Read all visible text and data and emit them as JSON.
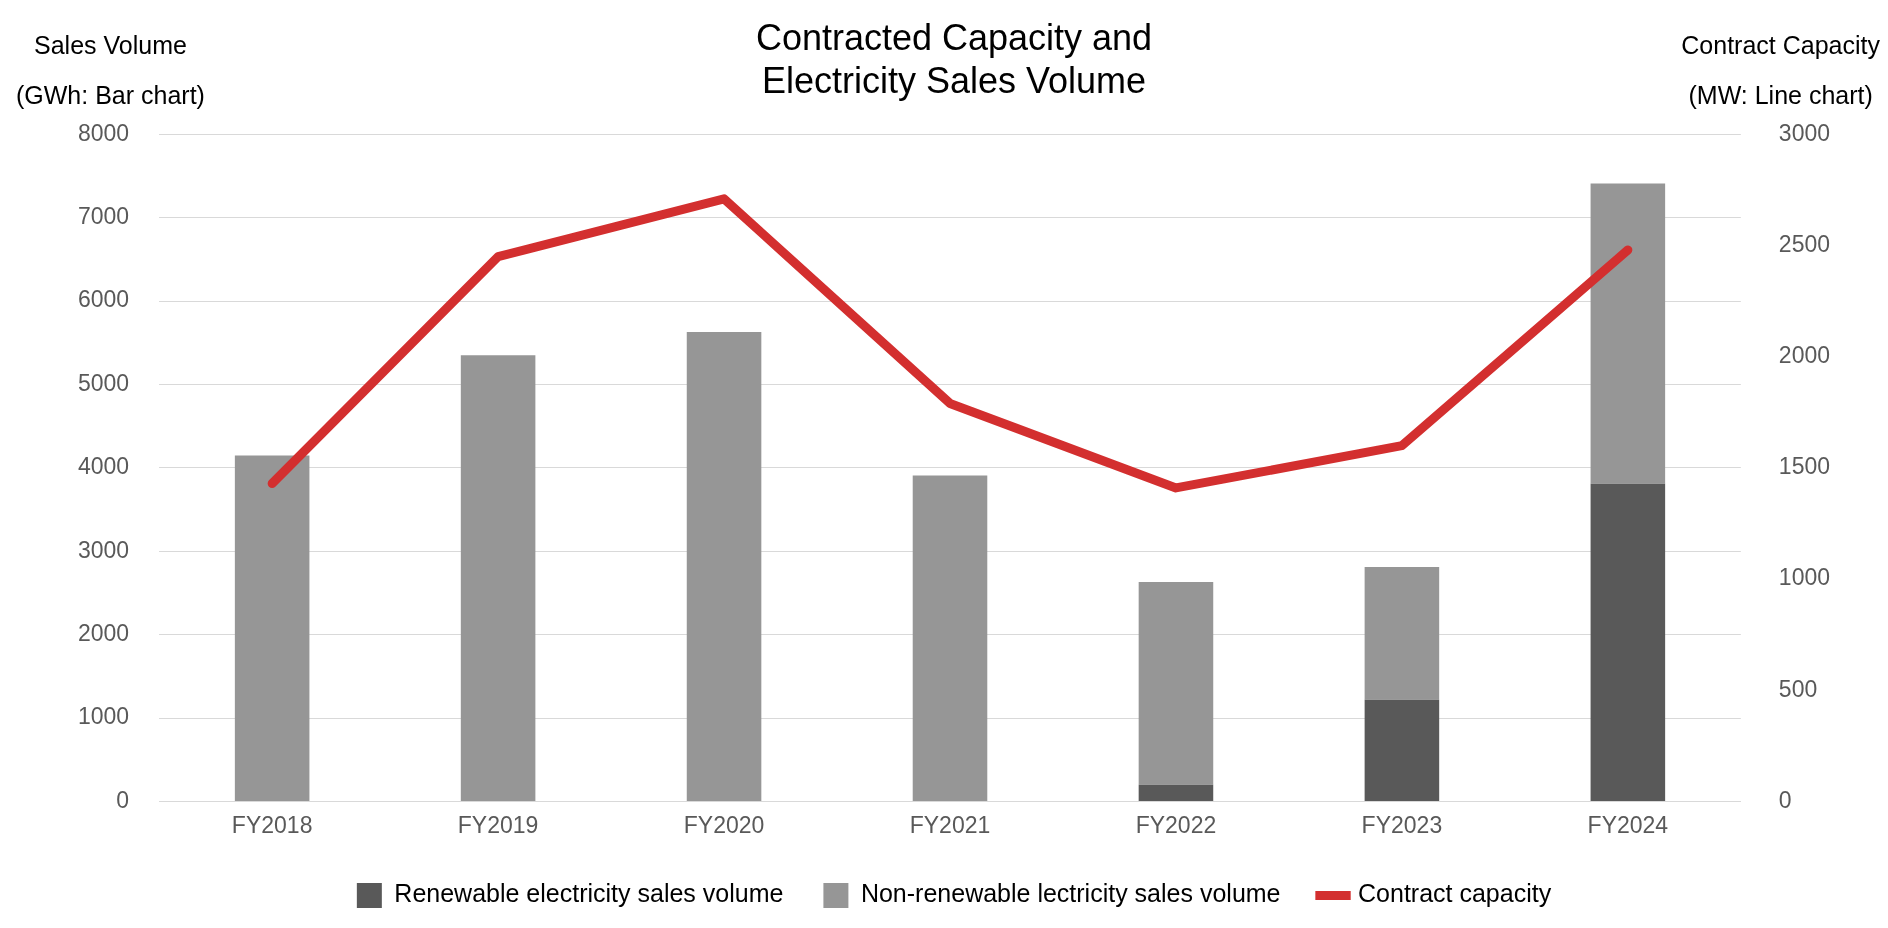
{
  "chart_data": {
    "type": "bar",
    "title": "Contracted Capacity and\nElectricity Sales Volume",
    "ylabel": "Sales Volume\n(GWh: Bar chart)",
    "y2label": "Contract Capacity\n(MW: Line chart)",
    "categories": [
      "FY2018",
      "FY2019",
      "FY2020",
      "FY2021",
      "FY2022",
      "FY2023",
      "FY2024"
    ],
    "series": [
      {
        "name": "Renewable electricity sales volume",
        "color": "#595959",
        "values": [
          0,
          0,
          0,
          0,
          200,
          1220,
          3810
        ]
      },
      {
        "name": "Non-renewable lectricity sales volume",
        "color": "#969696",
        "values": [
          4150,
          5350,
          5630,
          3910,
          2430,
          1590,
          3600
        ]
      },
      {
        "name": "Contract capacity",
        "type": "line",
        "axis": "y2",
        "color": "#d32f2f",
        "values": [
          1430,
          2450,
          2710,
          1790,
          1410,
          1600,
          2480
        ],
        "marker": "none",
        "line_style": "solid"
      }
    ],
    "stacked": true,
    "ylim": [
      0,
      8000
    ],
    "yticks": [
      0,
      1000,
      2000,
      3000,
      4000,
      5000,
      6000,
      7000,
      8000
    ],
    "y2lim": [
      0,
      3000
    ],
    "y2ticks": [
      0,
      500,
      1000,
      1500,
      2000,
      2500,
      3000
    ],
    "grid": "y",
    "legend": "bottom"
  }
}
